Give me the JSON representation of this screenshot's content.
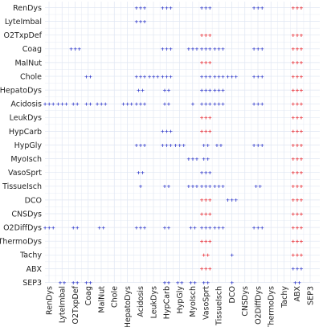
{
  "chart_data": {
    "type": "heatmap",
    "title": "",
    "xlabel": "",
    "ylabel": "",
    "grid": true,
    "rows": [
      "RenDys",
      "LyteImbal",
      "O2TxpDef",
      "Coag",
      "MalNut",
      "Chole",
      "HepatoDys",
      "Acidosis",
      "LeukDys",
      "HypCarb",
      "HypGly",
      "MyoIsch",
      "VasoSprt",
      "TissueIsch",
      "DCO",
      "CNSDys",
      "O2DiffDys",
      "ThermoDys",
      "Tachy",
      "ABX",
      "SEP3"
    ],
    "columns": [
      "RenDys",
      "LyteImbal",
      "O2TxpDef",
      "Coag",
      "MalNut",
      "Chole",
      "HepatoDys",
      "Acidosis",
      "LeukDys",
      "HypCarb",
      "HypGly",
      "MyoIsch",
      "VasoSprt",
      "TissueIsch",
      "DCO",
      "CNSDys",
      "O2DiffDys",
      "ThermoDys",
      "Tachy",
      "ABX",
      "SEP3"
    ],
    "colors": {
      "blue": "#2b35c9",
      "red": "#e8242c",
      "grid": "#dfe6f2"
    },
    "cells": [
      {
        "row": "RenDys",
        "col": "Acidosis",
        "text": "+++",
        "color": "blue"
      },
      {
        "row": "RenDys",
        "col": "HypCarb",
        "text": "+++",
        "color": "blue"
      },
      {
        "row": "RenDys",
        "col": "VasoSprt",
        "text": "+++",
        "color": "blue"
      },
      {
        "row": "RenDys",
        "col": "O2DiffDys",
        "text": "+++",
        "color": "blue"
      },
      {
        "row": "RenDys",
        "col": "ABX",
        "text": "+++",
        "color": "red"
      },
      {
        "row": "LyteImbal",
        "col": "Acidosis",
        "text": "+++",
        "color": "blue"
      },
      {
        "row": "O2TxpDef",
        "col": "VasoSprt",
        "text": "+++",
        "color": "red"
      },
      {
        "row": "O2TxpDef",
        "col": "ABX",
        "text": "+++",
        "color": "red"
      },
      {
        "row": "Coag",
        "col": "O2TxpDef",
        "text": "+++",
        "color": "blue"
      },
      {
        "row": "Coag",
        "col": "HypCarb",
        "text": "+++",
        "color": "blue"
      },
      {
        "row": "Coag",
        "col": "MyoIsch",
        "text": "+++",
        "color": "blue"
      },
      {
        "row": "Coag",
        "col": "VasoSprt",
        "text": "+++",
        "color": "blue"
      },
      {
        "row": "Coag",
        "col": "TissueIsch",
        "text": "+++",
        "color": "blue"
      },
      {
        "row": "Coag",
        "col": "O2DiffDys",
        "text": "+++",
        "color": "blue"
      },
      {
        "row": "Coag",
        "col": "ABX",
        "text": "+++",
        "color": "red"
      },
      {
        "row": "MalNut",
        "col": "VasoSprt",
        "text": "+++",
        "color": "red"
      },
      {
        "row": "MalNut",
        "col": "ABX",
        "text": "+++",
        "color": "red"
      },
      {
        "row": "Chole",
        "col": "Coag",
        "text": "++",
        "color": "blue"
      },
      {
        "row": "Chole",
        "col": "Acidosis",
        "text": "+++",
        "color": "blue"
      },
      {
        "row": "Chole",
        "col": "LeukDys",
        "text": "+++",
        "color": "blue"
      },
      {
        "row": "Chole",
        "col": "HypCarb",
        "text": "+++",
        "color": "blue"
      },
      {
        "row": "Chole",
        "col": "VasoSprt",
        "text": "+++",
        "color": "blue"
      },
      {
        "row": "Chole",
        "col": "TissueIsch",
        "text": "+++",
        "color": "blue"
      },
      {
        "row": "Chole",
        "col": "DCO",
        "text": "+++",
        "color": "blue"
      },
      {
        "row": "Chole",
        "col": "O2DiffDys",
        "text": "+++",
        "color": "blue"
      },
      {
        "row": "Chole",
        "col": "ABX",
        "text": "+++",
        "color": "red"
      },
      {
        "row": "HepatoDys",
        "col": "Acidosis",
        "text": "++",
        "color": "blue"
      },
      {
        "row": "HepatoDys",
        "col": "HypCarb",
        "text": "++",
        "color": "blue"
      },
      {
        "row": "HepatoDys",
        "col": "VasoSprt",
        "text": "+++",
        "color": "blue"
      },
      {
        "row": "HepatoDys",
        "col": "TissueIsch",
        "text": "+++",
        "color": "blue"
      },
      {
        "row": "HepatoDys",
        "col": "ABX",
        "text": "+++",
        "color": "red"
      },
      {
        "row": "Acidosis",
        "col": "RenDys",
        "text": "+++",
        "color": "blue"
      },
      {
        "row": "Acidosis",
        "col": "LyteImbal",
        "text": "+++",
        "color": "blue"
      },
      {
        "row": "Acidosis",
        "col": "O2TxpDef",
        "text": "++",
        "color": "blue"
      },
      {
        "row": "Acidosis",
        "col": "Coag",
        "text": "++",
        "color": "blue"
      },
      {
        "row": "Acidosis",
        "col": "MalNut",
        "text": "+++",
        "color": "blue"
      },
      {
        "row": "Acidosis",
        "col": "HepatoDys",
        "text": "+++",
        "color": "blue"
      },
      {
        "row": "Acidosis",
        "col": "Acidosis",
        "text": "+++",
        "color": "blue"
      },
      {
        "row": "Acidosis",
        "col": "HypCarb",
        "text": "++",
        "color": "blue"
      },
      {
        "row": "Acidosis",
        "col": "MyoIsch",
        "text": "+",
        "color": "blue"
      },
      {
        "row": "Acidosis",
        "col": "VasoSprt",
        "text": "+++",
        "color": "blue"
      },
      {
        "row": "Acidosis",
        "col": "TissueIsch",
        "text": "+++",
        "color": "blue"
      },
      {
        "row": "Acidosis",
        "col": "O2DiffDys",
        "text": "+++",
        "color": "blue"
      },
      {
        "row": "Acidosis",
        "col": "ABX",
        "text": "+++",
        "color": "red"
      },
      {
        "row": "LeukDys",
        "col": "VasoSprt",
        "text": "+++",
        "color": "red"
      },
      {
        "row": "LeukDys",
        "col": "ABX",
        "text": "+++",
        "color": "red"
      },
      {
        "row": "HypCarb",
        "col": "HypCarb",
        "text": "+++",
        "color": "blue"
      },
      {
        "row": "HypCarb",
        "col": "VasoSprt",
        "text": "+++",
        "color": "red"
      },
      {
        "row": "HypCarb",
        "col": "ABX",
        "text": "+++",
        "color": "red"
      },
      {
        "row": "HypGly",
        "col": "Acidosis",
        "text": "+++",
        "color": "blue"
      },
      {
        "row": "HypGly",
        "col": "HypCarb",
        "text": "+++",
        "color": "blue"
      },
      {
        "row": "HypGly",
        "col": "HypGly",
        "text": "+++",
        "color": "blue"
      },
      {
        "row": "HypGly",
        "col": "VasoSprt",
        "text": "++",
        "color": "blue"
      },
      {
        "row": "HypGly",
        "col": "TissueIsch",
        "text": "++",
        "color": "blue"
      },
      {
        "row": "HypGly",
        "col": "O2DiffDys",
        "text": "+++",
        "color": "blue"
      },
      {
        "row": "HypGly",
        "col": "ABX",
        "text": "+++",
        "color": "red"
      },
      {
        "row": "MyoIsch",
        "col": "MyoIsch",
        "text": "+++",
        "color": "blue"
      },
      {
        "row": "MyoIsch",
        "col": "VasoSprt",
        "text": "++",
        "color": "blue"
      },
      {
        "row": "MyoIsch",
        "col": "ABX",
        "text": "+++",
        "color": "red"
      },
      {
        "row": "VasoSprt",
        "col": "Acidosis",
        "text": "++",
        "color": "blue"
      },
      {
        "row": "VasoSprt",
        "col": "VasoSprt",
        "text": "+++",
        "color": "blue"
      },
      {
        "row": "VasoSprt",
        "col": "ABX",
        "text": "+++",
        "color": "red"
      },
      {
        "row": "TissueIsch",
        "col": "Acidosis",
        "text": "+",
        "color": "blue"
      },
      {
        "row": "TissueIsch",
        "col": "HypCarb",
        "text": "++",
        "color": "blue"
      },
      {
        "row": "TissueIsch",
        "col": "MyoIsch",
        "text": "+++",
        "color": "blue"
      },
      {
        "row": "TissueIsch",
        "col": "VasoSprt",
        "text": "+++",
        "color": "blue"
      },
      {
        "row": "TissueIsch",
        "col": "TissueIsch",
        "text": "+++",
        "color": "blue"
      },
      {
        "row": "TissueIsch",
        "col": "O2DiffDys",
        "text": "++",
        "color": "blue"
      },
      {
        "row": "TissueIsch",
        "col": "ABX",
        "text": "+++",
        "color": "red"
      },
      {
        "row": "DCO",
        "col": "VasoSprt",
        "text": "+++",
        "color": "red"
      },
      {
        "row": "DCO",
        "col": "DCO",
        "text": "+++",
        "color": "blue"
      },
      {
        "row": "DCO",
        "col": "ABX",
        "text": "+++",
        "color": "red"
      },
      {
        "row": "CNSDys",
        "col": "VasoSprt",
        "text": "+++",
        "color": "red"
      },
      {
        "row": "CNSDys",
        "col": "ABX",
        "text": "+++",
        "color": "red"
      },
      {
        "row": "O2DiffDys",
        "col": "RenDys",
        "text": "+++",
        "color": "blue"
      },
      {
        "row": "O2DiffDys",
        "col": "O2TxpDef",
        "text": "++",
        "color": "blue"
      },
      {
        "row": "O2DiffDys",
        "col": "MalNut",
        "text": "++",
        "color": "blue"
      },
      {
        "row": "O2DiffDys",
        "col": "Acidosis",
        "text": "+++",
        "color": "blue"
      },
      {
        "row": "O2DiffDys",
        "col": "HypCarb",
        "text": "++",
        "color": "blue"
      },
      {
        "row": "O2DiffDys",
        "col": "MyoIsch",
        "text": "++",
        "color": "blue"
      },
      {
        "row": "O2DiffDys",
        "col": "VasoSprt",
        "text": "+++",
        "color": "blue"
      },
      {
        "row": "O2DiffDys",
        "col": "TissueIsch",
        "text": "+++",
        "color": "blue"
      },
      {
        "row": "O2DiffDys",
        "col": "O2DiffDys",
        "text": "+++",
        "color": "blue"
      },
      {
        "row": "O2DiffDys",
        "col": "ABX",
        "text": "+++",
        "color": "red"
      },
      {
        "row": "ThermoDys",
        "col": "VasoSprt",
        "text": "+++",
        "color": "red"
      },
      {
        "row": "ThermoDys",
        "col": "ABX",
        "text": "+++",
        "color": "red"
      },
      {
        "row": "Tachy",
        "col": "VasoSprt",
        "text": "++",
        "color": "red"
      },
      {
        "row": "Tachy",
        "col": "DCO",
        "text": "+",
        "color": "blue"
      },
      {
        "row": "Tachy",
        "col": "ABX",
        "text": "+++",
        "color": "red"
      },
      {
        "row": "ABX",
        "col": "VasoSprt",
        "text": "+++",
        "color": "red"
      },
      {
        "row": "ABX",
        "col": "ABX",
        "text": "+++",
        "color": "blue"
      },
      {
        "row": "SEP3",
        "col": "LyteImbal",
        "text": "++",
        "color": "blue"
      },
      {
        "row": "SEP3",
        "col": "O2TxpDef",
        "text": "++",
        "color": "blue"
      },
      {
        "row": "SEP3",
        "col": "Coag",
        "text": "++",
        "color": "blue"
      },
      {
        "row": "SEP3",
        "col": "HypCarb",
        "text": "++",
        "color": "blue"
      },
      {
        "row": "SEP3",
        "col": "HypGly",
        "text": "++",
        "color": "blue"
      },
      {
        "row": "SEP3",
        "col": "MyoIsch",
        "text": "++",
        "color": "blue"
      },
      {
        "row": "SEP3",
        "col": "VasoSprt",
        "text": "++",
        "color": "blue"
      },
      {
        "row": "SEP3",
        "col": "DCO",
        "text": "+",
        "color": "blue"
      },
      {
        "row": "SEP3",
        "col": "ABX",
        "text": "++",
        "color": "blue"
      }
    ]
  }
}
